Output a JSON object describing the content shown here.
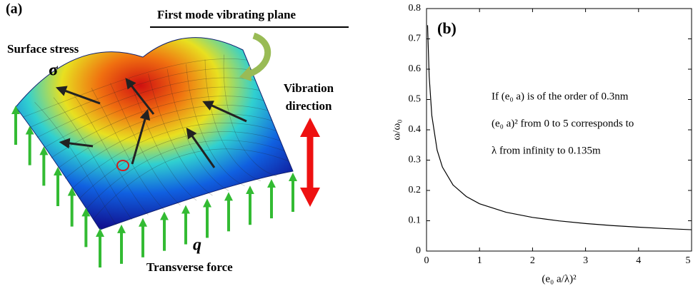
{
  "illustration": {
    "panel_label": "(a)",
    "title": "First mode vibrating plane",
    "stress_label": "Surface stress",
    "stress_symbol": "σ",
    "vibration_lines": [
      "Vibration",
      "direction"
    ],
    "force_symbol": "q",
    "force_label": "Transverse force"
  },
  "chart_data": {
    "type": "line",
    "panel_label": "(b)",
    "xlabel": "(e₀ a/λ)²",
    "ylabel": "ω/ω₀",
    "annotations": [
      "If (e₀ a) is of the order of 0.3nm",
      "(e₀ a)² from 0 to 5 corresponds to",
      "λ from infinity to 0.135m"
    ],
    "x": [
      0.02,
      0.05,
      0.1,
      0.2,
      0.3,
      0.5,
      0.75,
      1,
      1.5,
      2,
      2.5,
      3,
      3.5,
      4,
      4.5,
      5
    ],
    "series": [
      {
        "color": "#000000",
        "values": [
          0.745,
          0.577,
          0.447,
          0.333,
          0.277,
          0.218,
          0.18,
          0.156,
          0.128,
          0.111,
          0.0995,
          0.0909,
          0.0842,
          0.0788,
          0.0743,
          0.0705
        ]
      }
    ],
    "xlim": [
      0,
      5
    ],
    "ylim": [
      0,
      0.8
    ],
    "xticks": [
      0,
      1,
      2,
      3,
      4,
      5
    ],
    "yticks": [
      0,
      0.1,
      0.2,
      0.3,
      0.4,
      0.5,
      0.6,
      0.7,
      0.8
    ]
  }
}
